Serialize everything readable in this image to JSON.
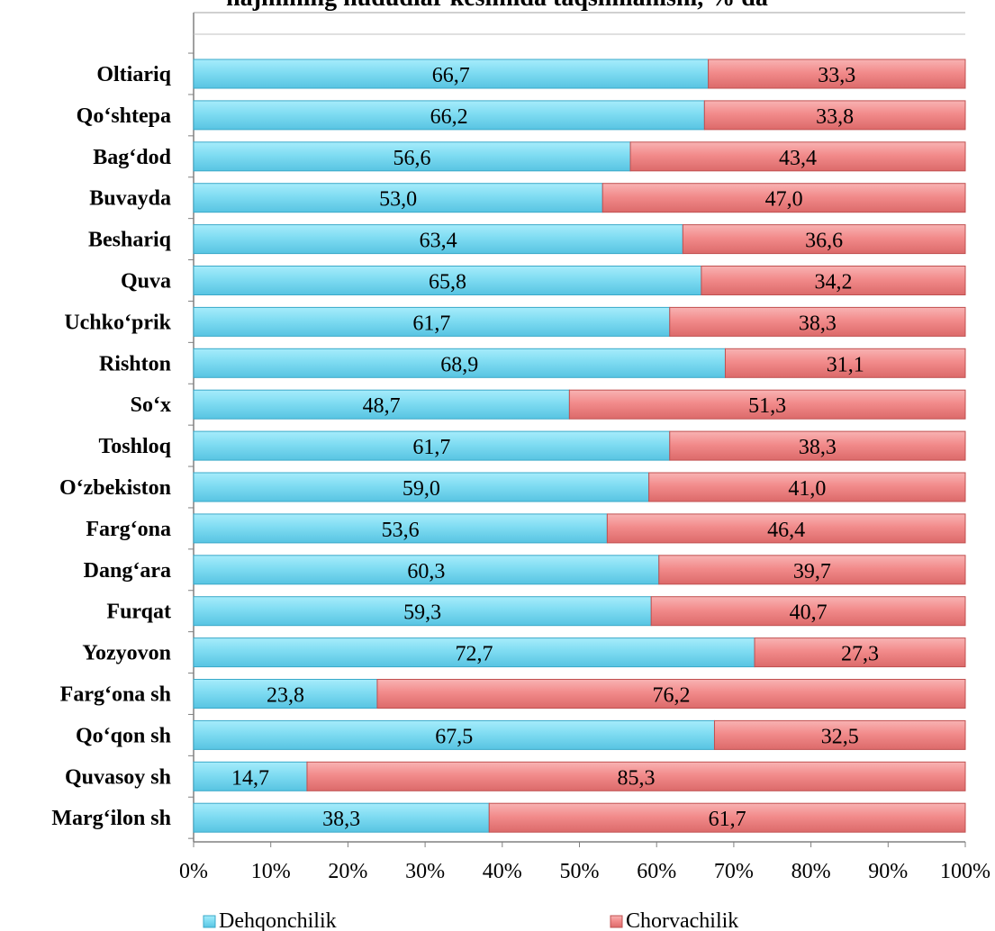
{
  "chart_data": {
    "type": "bar",
    "orientation": "horizontal",
    "stacked": "percent",
    "title": "hajmining hududlar kesimida taqsimlanishi, % da",
    "categories": [
      "Oltiariq",
      "Qo‘shtepa",
      "Bag‘dod",
      "Buvayda",
      "Beshariq",
      "Quva",
      "Uchko‘prik",
      "Rishton",
      "So‘x",
      "Toshloq",
      "O‘zbekiston",
      "Farg‘ona",
      "Dang‘ara",
      "Furqat",
      "Yozyovon",
      "Farg‘ona sh",
      "Qo‘qon sh",
      "Quvasoy sh",
      "Marg‘ilon sh"
    ],
    "series": [
      {
        "name": "Dehqonchilik",
        "color": "#7fdcf2",
        "values": [
          66.7,
          66.2,
          56.6,
          53.0,
          63.4,
          65.8,
          61.7,
          68.9,
          48.7,
          61.7,
          59.0,
          53.6,
          60.3,
          59.3,
          72.7,
          23.8,
          67.5,
          14.7,
          38.3
        ],
        "labels": [
          "66,7",
          "66,2",
          "56,6",
          "53,0",
          "63,4",
          "65,8",
          "61,7",
          "68,9",
          "48,7",
          "61,7",
          "59,0",
          "53,6",
          "60,3",
          "59,3",
          "72,7",
          "23,8",
          "67,5",
          "14,7",
          "38,3"
        ]
      },
      {
        "name": "Chorvachilik",
        "color": "#f28b8b",
        "values": [
          33.3,
          33.8,
          43.4,
          47.0,
          36.6,
          34.2,
          38.3,
          31.1,
          51.3,
          38.3,
          41.0,
          46.4,
          39.7,
          40.7,
          27.3,
          76.2,
          32.5,
          85.3,
          61.7
        ],
        "labels": [
          "33,3",
          "33,8",
          "43,4",
          "47,0",
          "36,6",
          "34,2",
          "38,3",
          "31,1",
          "51,3",
          "38,3",
          "41,0",
          "46,4",
          "39,7",
          "40,7",
          "27,3",
          "76,2",
          "32,5",
          "85,3",
          "61,7"
        ]
      }
    ],
    "xlim": [
      0,
      100
    ],
    "xticks": [
      "0%",
      "10%",
      "20%",
      "30%",
      "40%",
      "50%",
      "60%",
      "70%",
      "80%",
      "90%",
      "100%"
    ],
    "grid": false,
    "legend": "bottom"
  }
}
